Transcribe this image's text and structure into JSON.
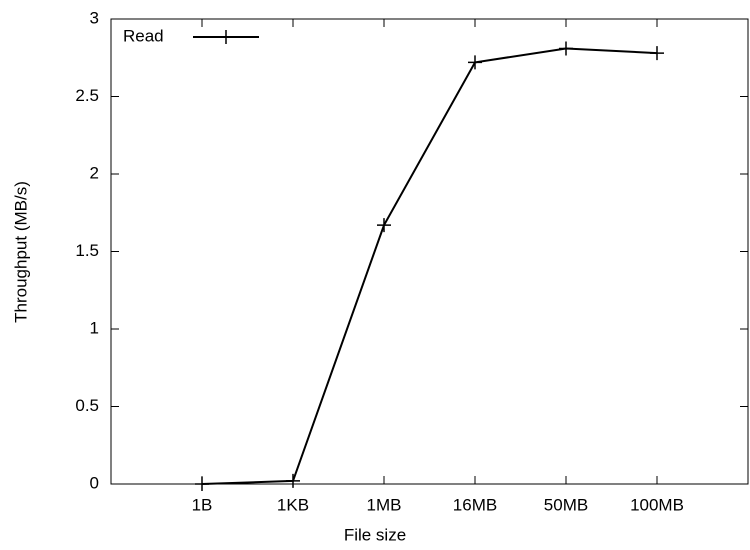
{
  "chart_data": {
    "type": "line",
    "x_label": "File size",
    "y_label": "Throughput (MB/s)",
    "categories": [
      "1B",
      "1KB",
      "1MB",
      "16MB",
      "50MB",
      "100MB"
    ],
    "series": [
      {
        "name": "Read",
        "color": "#000000",
        "values": [
          0,
          0.02,
          1.67,
          2.72,
          2.81,
          2.78
        ]
      }
    ],
    "ylim": [
      0,
      3
    ],
    "yticks": [
      0,
      0.5,
      1,
      1.5,
      2,
      2.5,
      3
    ],
    "grid": false,
    "legend": "top-left"
  }
}
